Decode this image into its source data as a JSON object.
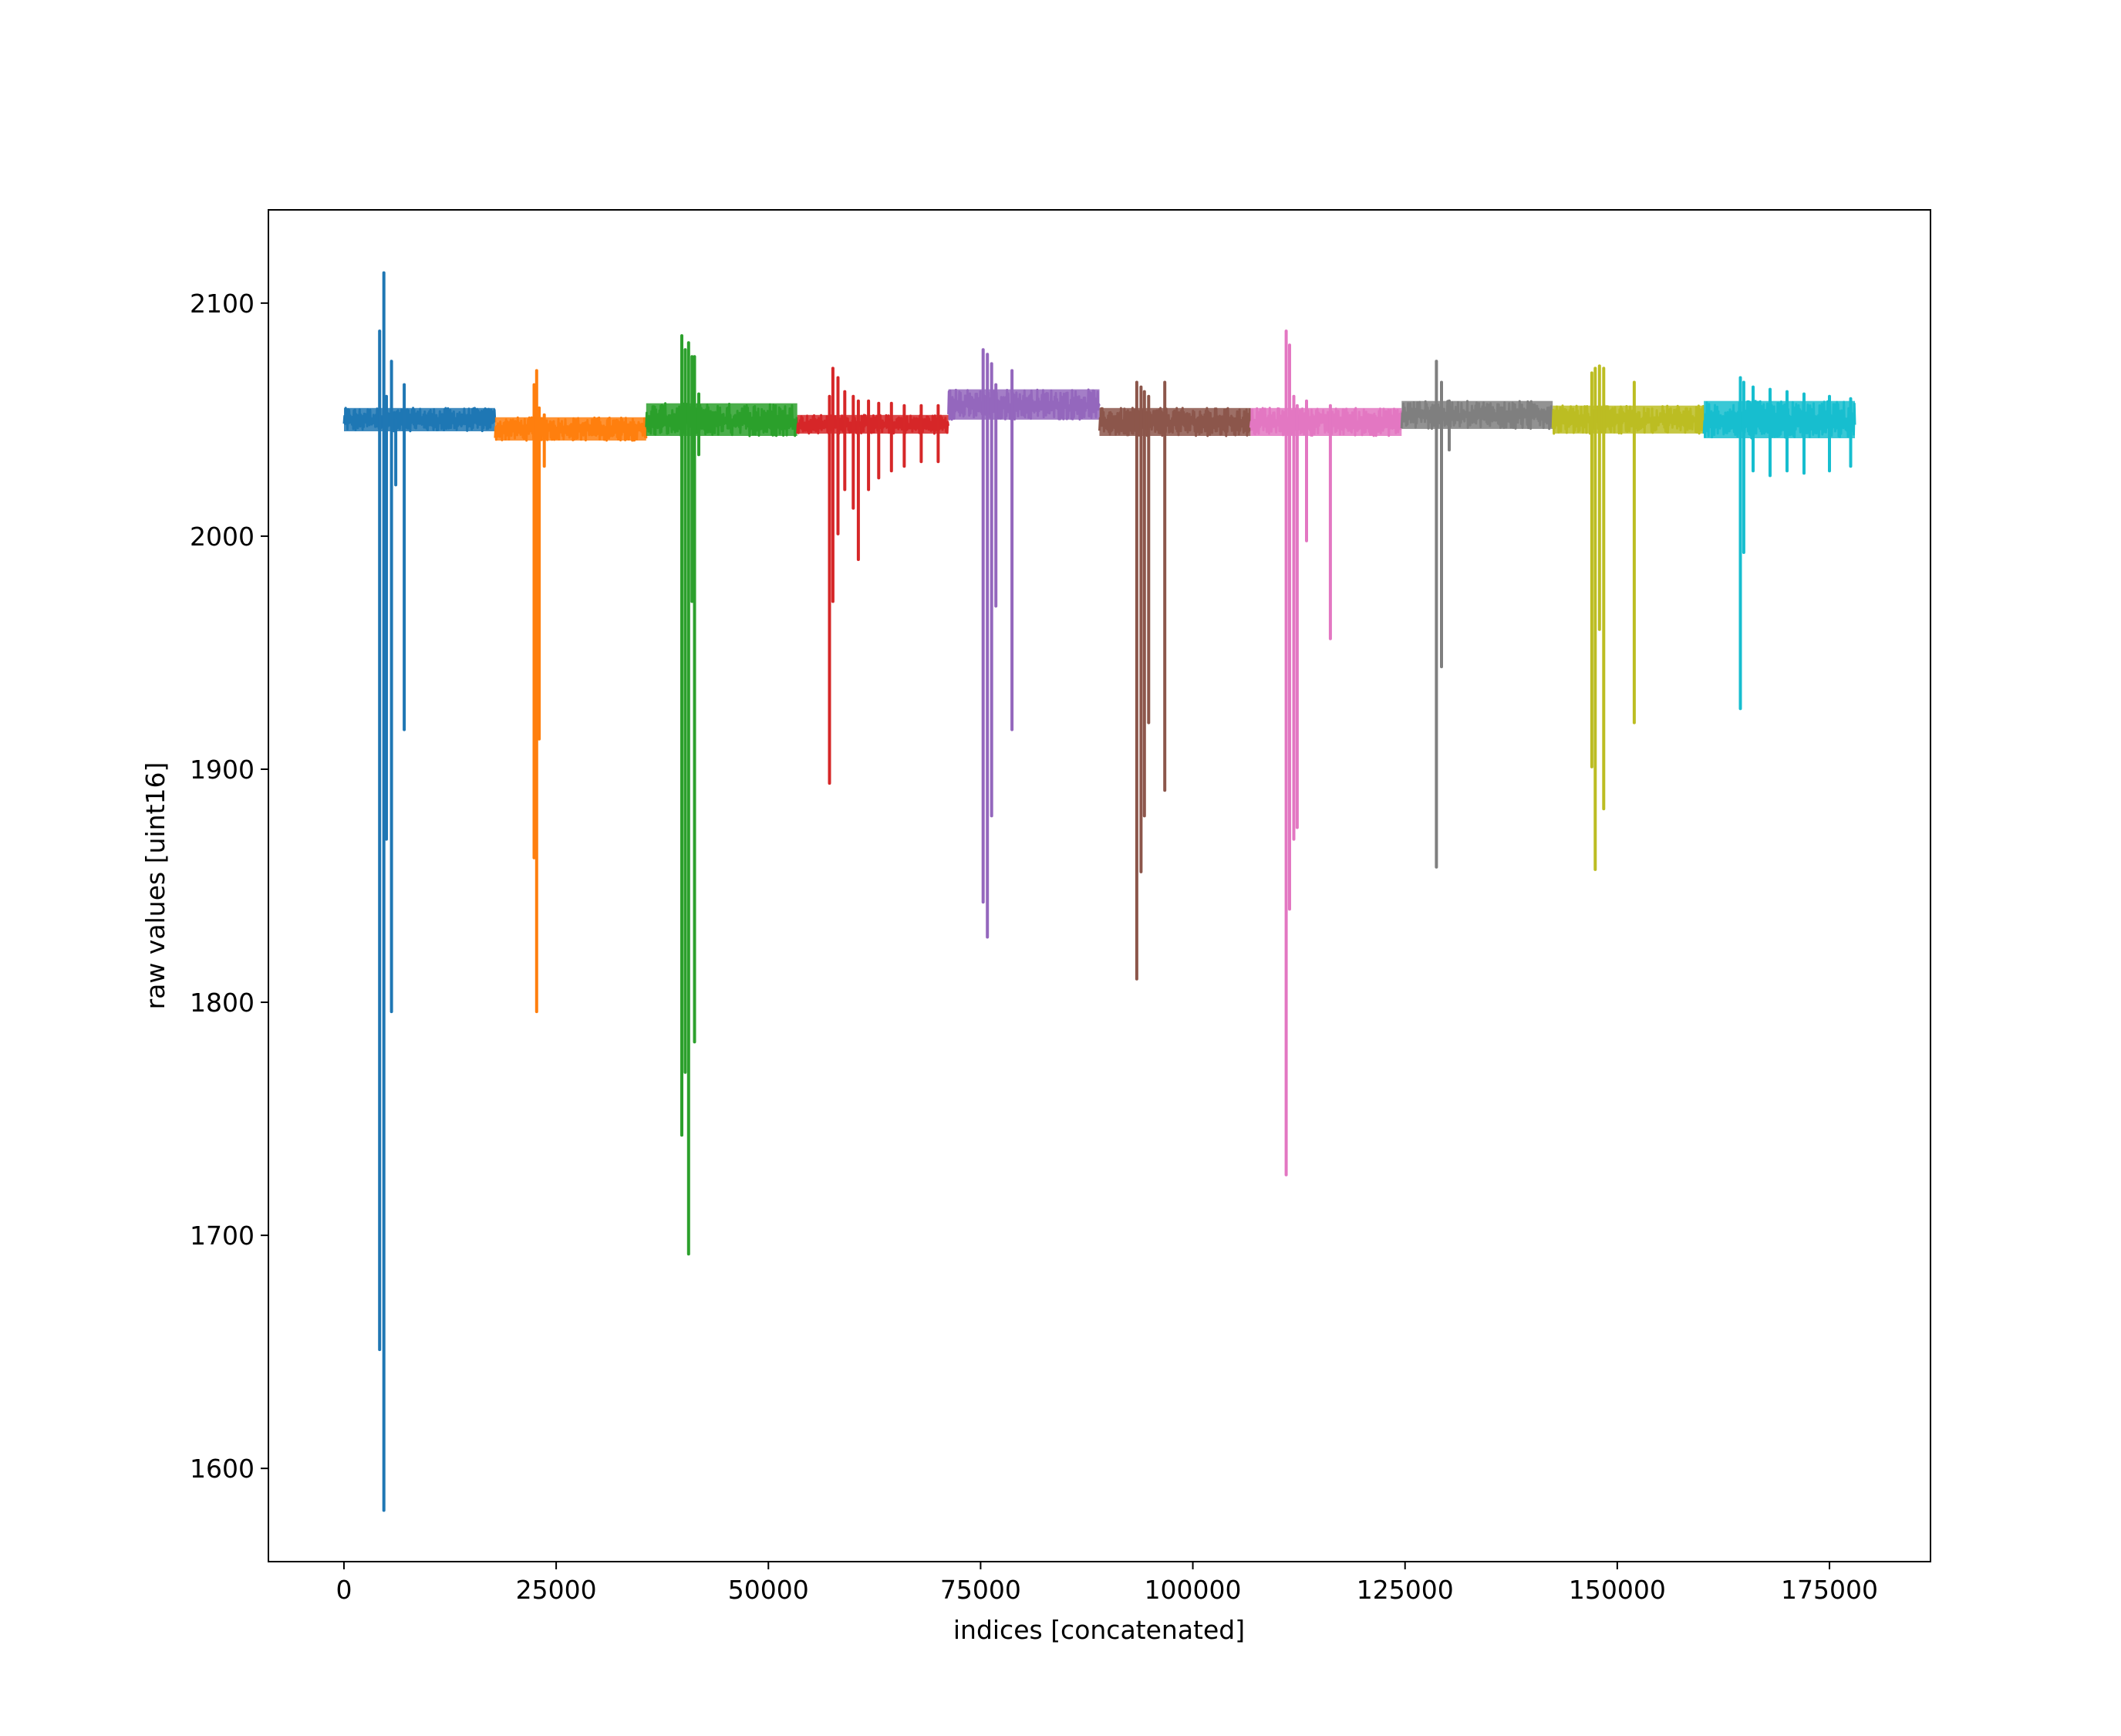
{
  "chart_data": {
    "type": "line",
    "title": "",
    "xlabel": "indices [concatenated]",
    "ylabel": "raw values [uint16]",
    "xlim": [
      -8900,
      186900
    ],
    "ylim": [
      1560,
      2140
    ],
    "x_ticks": [
      0,
      25000,
      50000,
      75000,
      100000,
      125000,
      150000,
      175000
    ],
    "x_tick_labels": [
      "0",
      "25000",
      "50000",
      "75000",
      "100000",
      "125000",
      "150000",
      "175000"
    ],
    "y_ticks": [
      1600,
      1700,
      1800,
      1900,
      2000,
      2100
    ],
    "y_tick_labels": [
      "1600",
      "1700",
      "1800",
      "1900",
      "2000",
      "2100"
    ],
    "grid": false,
    "legend": "none",
    "series": [
      {
        "color": "#1f77b4",
        "x_start": 0,
        "x_end": 17800,
        "baseline": 2050,
        "band_low": 2045,
        "band_high": 2055,
        "spikes": [
          [
            4200,
            1651,
            2088
          ],
          [
            4700,
            1582,
            2113
          ],
          [
            5000,
            1870,
            2060
          ],
          [
            5600,
            1796,
            2075
          ],
          [
            6100,
            2022,
            2050
          ],
          [
            7100,
            1917,
            2065
          ]
        ]
      },
      {
        "color": "#ff7f0e",
        "x_start": 17800,
        "x_end": 35600,
        "baseline": 2046,
        "band_low": 2041,
        "band_high": 2051,
        "spikes": [
          [
            22400,
            1862,
            2065
          ],
          [
            22700,
            1796,
            2071
          ],
          [
            23000,
            1913,
            2055
          ],
          [
            23600,
            2030,
            2052
          ]
        ]
      },
      {
        "color": "#2ca02c",
        "x_start": 35600,
        "x_end": 53400,
        "baseline": 2049,
        "band_low": 2043,
        "band_high": 2057,
        "spikes": [
          [
            39800,
            1743,
            2086
          ],
          [
            40200,
            1770,
            2080
          ],
          [
            40600,
            1692,
            2083
          ],
          [
            41000,
            1972,
            2077
          ],
          [
            41300,
            1783,
            2077
          ],
          [
            41800,
            2035,
            2061
          ]
        ]
      },
      {
        "color": "#d62728",
        "x_start": 53400,
        "x_end": 71200,
        "baseline": 2048,
        "band_low": 2044,
        "band_high": 2052,
        "spikes": [
          [
            57200,
            1894,
            2060
          ],
          [
            57600,
            1972,
            2072
          ],
          [
            58200,
            2001,
            2068
          ],
          [
            59000,
            2020,
            2062
          ],
          [
            60000,
            2012,
            2060
          ],
          [
            60600,
            1990,
            2058
          ],
          [
            61800,
            2020,
            2058
          ],
          [
            63000,
            2025,
            2057
          ],
          [
            64500,
            2028,
            2057
          ],
          [
            66000,
            2030,
            2056
          ],
          [
            68000,
            2032,
            2056
          ],
          [
            70000,
            2032,
            2056
          ]
        ]
      },
      {
        "color": "#9467bd",
        "x_start": 71200,
        "x_end": 89000,
        "baseline": 2056,
        "band_low": 2050,
        "band_high": 2063,
        "spikes": [
          [
            75300,
            1843,
            2080
          ],
          [
            75800,
            1828,
            2078
          ],
          [
            76300,
            1880,
            2074
          ],
          [
            76800,
            1970,
            2065
          ],
          [
            78700,
            1917,
            2071
          ]
        ]
      },
      {
        "color": "#8c564b",
        "x_start": 89000,
        "x_end": 106800,
        "baseline": 2049,
        "band_low": 2043,
        "band_high": 2055,
        "spikes": [
          [
            93400,
            1810,
            2066
          ],
          [
            93900,
            1856,
            2064
          ],
          [
            94300,
            1880,
            2062
          ],
          [
            94800,
            1920,
            2060
          ],
          [
            96700,
            1891,
            2066
          ]
        ]
      },
      {
        "color": "#e377c2",
        "x_start": 106800,
        "x_end": 124600,
        "baseline": 2049,
        "band_low": 2043,
        "band_high": 2055,
        "spikes": [
          [
            111000,
            1726,
            2088
          ],
          [
            111400,
            1840,
            2082
          ],
          [
            111900,
            1870,
            2060
          ],
          [
            112300,
            1875,
            2056
          ],
          [
            113400,
            1998,
            2058
          ],
          [
            116200,
            1956,
            2056
          ]
        ]
      },
      {
        "color": "#7f7f7f",
        "x_start": 124600,
        "x_end": 142400,
        "baseline": 2052,
        "band_low": 2046,
        "band_high": 2058,
        "spikes": [
          [
            128700,
            1858,
            2075
          ],
          [
            129300,
            1944,
            2066
          ],
          [
            130200,
            2037,
            2058
          ]
        ]
      },
      {
        "color": "#bcbd22",
        "x_start": 142400,
        "x_end": 160200,
        "baseline": 2050,
        "band_low": 2044,
        "band_high": 2056,
        "spikes": [
          [
            147000,
            1901,
            2070
          ],
          [
            147400,
            1857,
            2072
          ],
          [
            147900,
            1960,
            2073
          ],
          [
            148400,
            1883,
            2072
          ],
          [
            152000,
            1920,
            2066
          ]
        ]
      },
      {
        "color": "#17becf",
        "x_start": 160200,
        "x_end": 178000,
        "baseline": 2048,
        "band_low": 2042,
        "band_high": 2058,
        "spikes": [
          [
            164500,
            1926,
            2068
          ],
          [
            164900,
            1993,
            2066
          ],
          [
            166000,
            2028,
            2064
          ],
          [
            168000,
            2026,
            2063
          ],
          [
            170000,
            2028,
            2062
          ],
          [
            172000,
            2027,
            2061
          ],
          [
            175000,
            2028,
            2060
          ],
          [
            177500,
            2030,
            2059
          ]
        ]
      }
    ]
  }
}
